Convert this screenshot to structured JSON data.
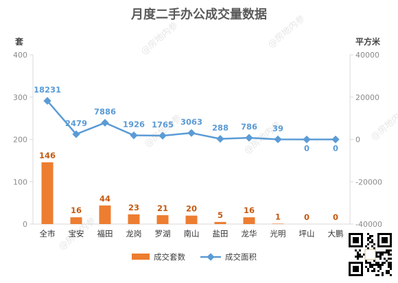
{
  "chart_data": {
    "type": "bar",
    "title": "月度二手办公成交量数据",
    "left_unit": "套",
    "right_unit": "平方米",
    "categories": [
      "全市",
      "宝安",
      "福田",
      "龙岗",
      "罗湖",
      "南山",
      "盐田",
      "龙华",
      "光明",
      "坪山",
      "大鹏"
    ],
    "series": [
      {
        "name": "成交套数",
        "type": "bar",
        "axis": "left",
        "color": "#ed7d31",
        "values": [
          146,
          16,
          44,
          23,
          21,
          20,
          5,
          16,
          1,
          0,
          0
        ]
      },
      {
        "name": "成交面积",
        "type": "line",
        "axis": "right",
        "color": "#5b9bd5",
        "values": [
          18231,
          2479,
          7886,
          1926,
          1765,
          3063,
          288,
          786,
          39,
          0,
          0
        ]
      }
    ],
    "left_axis": {
      "ylim": [
        0,
        400
      ],
      "ticks": [
        0,
        100,
        200,
        300,
        400
      ]
    },
    "right_axis": {
      "ylim": [
        -40000,
        40000
      ],
      "ticks": [
        -40000,
        -20000,
        0,
        20000,
        40000
      ]
    },
    "grid": false,
    "legend_position": "bottom",
    "watermark": "@房地内参"
  }
}
